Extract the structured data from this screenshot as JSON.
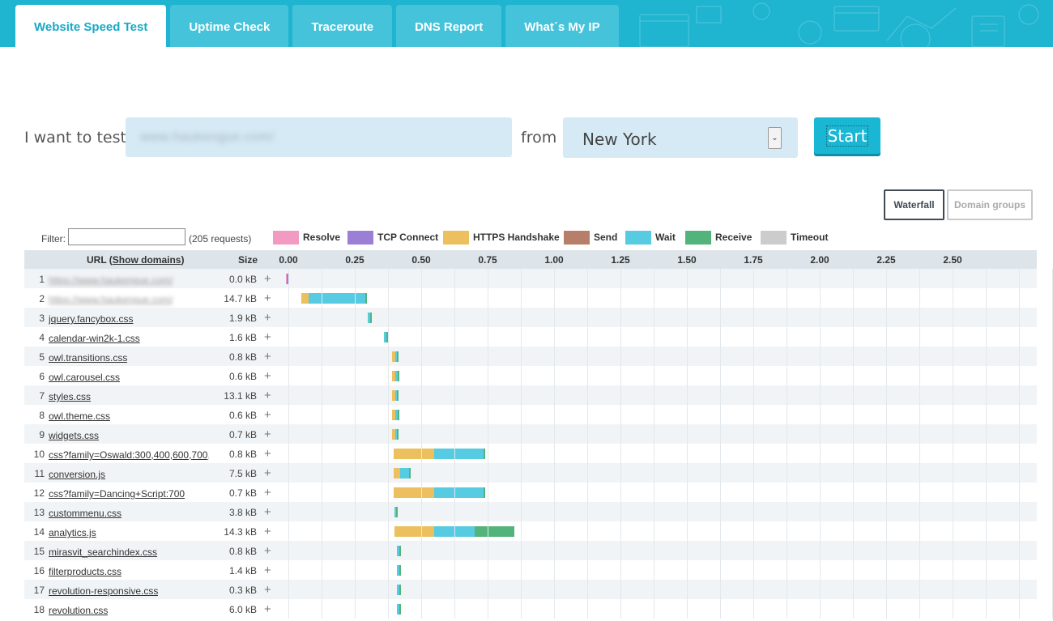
{
  "tabs": [
    {
      "label": "Website Speed Test",
      "active": true
    },
    {
      "label": "Uptime Check",
      "active": false
    },
    {
      "label": "Traceroute",
      "active": false
    },
    {
      "label": "DNS Report",
      "active": false
    },
    {
      "label": "What´s My IP",
      "active": false
    }
  ],
  "form": {
    "prefix": "I want to test",
    "url_value": "www.haukengue.com/",
    "from_label": "from",
    "location": "New York",
    "start_label": "Start"
  },
  "view": {
    "waterfall_label": "Waterfall",
    "domains_label": "Domain groups",
    "active": "Waterfall"
  },
  "filter": {
    "label": "Filter:",
    "value": "",
    "count_text": "(205 requests)"
  },
  "legend": [
    {
      "label": "Resolve",
      "color": "#f39ac2"
    },
    {
      "label": "TCP Connect",
      "color": "#9b7fd4"
    },
    {
      "label": "HTTPS Handshake",
      "color": "#ecc05e"
    },
    {
      "label": "Send",
      "color": "#b77f69"
    },
    {
      "label": "Wait",
      "color": "#56cbe2"
    },
    {
      "label": "Receive",
      "color": "#52b37b"
    },
    {
      "label": "Timeout",
      "color": "#cccccc"
    }
  ],
  "table": {
    "url_header": "URL (",
    "show_domains": "Show domains",
    "url_header_end": ")",
    "size_header": "Size",
    "ticks": [
      "0.00",
      "0.25",
      "0.50",
      "0.75",
      "1.00",
      "1.25",
      "1.50",
      "1.75",
      "2.00",
      "2.25",
      "2.50"
    ],
    "rows": [
      {
        "n": "1",
        "url": "https://www.haukengue.com/",
        "blurred": true,
        "size": "0.0 kB",
        "phases": [
          {
            "type": "Resolve",
            "start": -0.01,
            "dur": 0.003
          },
          {
            "type": "TCP Connect",
            "start": -0.007,
            "dur": 0.007
          }
        ]
      },
      {
        "n": "2",
        "url": "https://www.haukengue.com/",
        "blurred": true,
        "size": "14.7 kB",
        "phases": [
          {
            "type": "HTTPS Handshake",
            "start": 0.05,
            "dur": 0.025
          },
          {
            "type": "Wait",
            "start": 0.075,
            "dur": 0.215
          },
          {
            "type": "Receive",
            "start": 0.29,
            "dur": 0.004
          }
        ]
      },
      {
        "n": "3",
        "url": "jquery.fancybox.css",
        "blurred": false,
        "size": "1.9 kB",
        "phases": [
          {
            "type": "Wait",
            "start": 0.3,
            "dur": 0.007
          },
          {
            "type": "Receive",
            "start": 0.307,
            "dur": 0.004
          }
        ]
      },
      {
        "n": "4",
        "url": "calendar-win2k-1.css",
        "blurred": false,
        "size": "1.6 kB",
        "phases": [
          {
            "type": "Wait",
            "start": 0.36,
            "dur": 0.01
          },
          {
            "type": "Receive",
            "start": 0.37,
            "dur": 0.006
          }
        ]
      },
      {
        "n": "5",
        "url": "owl.transitions.css",
        "blurred": false,
        "size": "0.8 kB",
        "phases": [
          {
            "type": "HTTPS Handshake",
            "start": 0.39,
            "dur": 0.012
          },
          {
            "type": "Wait",
            "start": 0.402,
            "dur": 0.008
          },
          {
            "type": "Receive",
            "start": 0.41,
            "dur": 0.004
          }
        ]
      },
      {
        "n": "6",
        "url": "owl.carousel.css",
        "blurred": false,
        "size": "0.6 kB",
        "phases": [
          {
            "type": "HTTPS Handshake",
            "start": 0.39,
            "dur": 0.012
          },
          {
            "type": "Wait",
            "start": 0.402,
            "dur": 0.01
          },
          {
            "type": "Receive",
            "start": 0.412,
            "dur": 0.004
          }
        ]
      },
      {
        "n": "7",
        "url": "styles.css",
        "blurred": false,
        "size": "13.1 kB",
        "phases": [
          {
            "type": "HTTPS Handshake",
            "start": 0.39,
            "dur": 0.012
          },
          {
            "type": "Wait",
            "start": 0.402,
            "dur": 0.008
          },
          {
            "type": "Receive",
            "start": 0.41,
            "dur": 0.005
          }
        ]
      },
      {
        "n": "8",
        "url": "owl.theme.css",
        "blurred": false,
        "size": "0.6 kB",
        "phases": [
          {
            "type": "HTTPS Handshake",
            "start": 0.39,
            "dur": 0.012
          },
          {
            "type": "Wait",
            "start": 0.402,
            "dur": 0.01
          },
          {
            "type": "Receive",
            "start": 0.412,
            "dur": 0.004
          }
        ]
      },
      {
        "n": "9",
        "url": "widgets.css",
        "blurred": false,
        "size": "0.7 kB",
        "phases": [
          {
            "type": "HTTPS Handshake",
            "start": 0.39,
            "dur": 0.012
          },
          {
            "type": "Wait",
            "start": 0.402,
            "dur": 0.008
          },
          {
            "type": "Receive",
            "start": 0.41,
            "dur": 0.005
          }
        ]
      },
      {
        "n": "10",
        "url": "css?family=Oswald:300,400,600,700,...",
        "blurred": false,
        "size": "0.8 kB",
        "phases": [
          {
            "type": "HTTPS Handshake",
            "start": 0.395,
            "dur": 0.155
          },
          {
            "type": "Wait",
            "start": 0.55,
            "dur": 0.185
          },
          {
            "type": "Receive",
            "start": 0.735,
            "dur": 0.004
          }
        ]
      },
      {
        "n": "11",
        "url": "conversion.js",
        "blurred": false,
        "size": "7.5 kB",
        "phases": [
          {
            "type": "HTTPS Handshake",
            "start": 0.395,
            "dur": 0.025
          },
          {
            "type": "Wait",
            "start": 0.42,
            "dur": 0.035
          },
          {
            "type": "Receive",
            "start": 0.455,
            "dur": 0.004
          }
        ]
      },
      {
        "n": "12",
        "url": "css?family=Dancing+Script:700",
        "blurred": false,
        "size": "0.7 kB",
        "phases": [
          {
            "type": "HTTPS Handshake",
            "start": 0.395,
            "dur": 0.155
          },
          {
            "type": "Wait",
            "start": 0.55,
            "dur": 0.185
          },
          {
            "type": "Receive",
            "start": 0.735,
            "dur": 0.004
          }
        ]
      },
      {
        "n": "13",
        "url": "custommenu.css",
        "blurred": false,
        "size": "3.8 kB",
        "phases": [
          {
            "type": "Wait",
            "start": 0.4,
            "dur": 0.007
          },
          {
            "type": "Receive",
            "start": 0.407,
            "dur": 0.004
          }
        ]
      },
      {
        "n": "14",
        "url": "analytics.js",
        "blurred": false,
        "size": "14.3 kB",
        "phases": [
          {
            "type": "HTTPS Handshake",
            "start": 0.398,
            "dur": 0.152
          },
          {
            "type": "Wait",
            "start": 0.55,
            "dur": 0.152
          },
          {
            "type": "Receive",
            "start": 0.702,
            "dur": 0.148
          }
        ]
      },
      {
        "n": "15",
        "url": "mirasvit_searchindex.css",
        "blurred": false,
        "size": "0.8 kB",
        "phases": [
          {
            "type": "Wait",
            "start": 0.41,
            "dur": 0.008
          },
          {
            "type": "Receive",
            "start": 0.418,
            "dur": 0.004
          }
        ]
      },
      {
        "n": "16",
        "url": "filterproducts.css",
        "blurred": false,
        "size": "1.4 kB",
        "phases": [
          {
            "type": "Wait",
            "start": 0.41,
            "dur": 0.008
          },
          {
            "type": "Receive",
            "start": 0.418,
            "dur": 0.004
          }
        ]
      },
      {
        "n": "17",
        "url": "revolution-responsive.css",
        "blurred": false,
        "size": "0.3 kB",
        "phases": [
          {
            "type": "Wait",
            "start": 0.41,
            "dur": 0.008
          },
          {
            "type": "Receive",
            "start": 0.418,
            "dur": 0.004
          }
        ]
      },
      {
        "n": "18",
        "url": "revolution.css",
        "blurred": false,
        "size": "6.0 kB",
        "phases": [
          {
            "type": "Wait",
            "start": 0.41,
            "dur": 0.008
          },
          {
            "type": "Receive",
            "start": 0.418,
            "dur": 0.004
          }
        ]
      }
    ]
  }
}
